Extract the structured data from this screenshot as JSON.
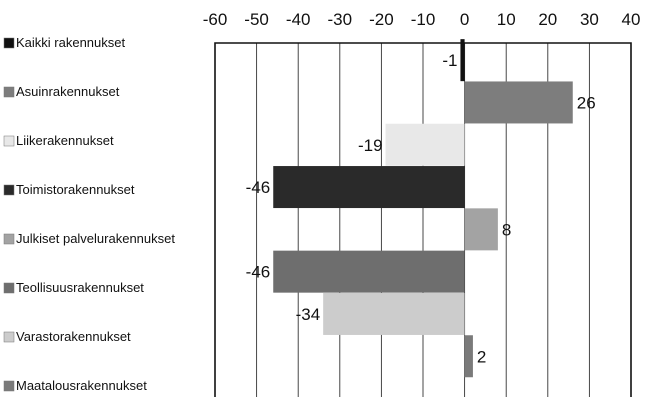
{
  "chart_data": {
    "type": "bar",
    "orientation": "horizontal",
    "categories": [
      "Kaikki rakennukset",
      "Asuinrakennukset",
      "Liikerakennukset",
      "Toimistorakennukset",
      "Julkiset palvelurakennukset",
      "Teollisuusrakennukset",
      "Varastorakennukset",
      "Maatalousrakennukset"
    ],
    "values": [
      -1,
      26,
      -19,
      -46,
      8,
      -46,
      -34,
      2
    ],
    "value_labels": [
      "-1",
      "26",
      "-19",
      "-46",
      "8",
      "-46",
      "-34",
      "2"
    ],
    "colors": [
      "#111111",
      "#7d7d7d",
      "#e8e8e8",
      "#2a2a2a",
      "#a3a3a3",
      "#6e6e6e",
      "#cccccc",
      "#7a7a7a"
    ],
    "xlim": [
      -60,
      40
    ],
    "xticks": [
      -60,
      -50,
      -40,
      -30,
      -20,
      -10,
      0,
      10,
      20,
      30,
      40
    ],
    "xtick_labels": [
      "-60",
      "-50",
      "-40",
      "-30",
      "-20",
      "-10",
      "0",
      "10",
      "20",
      "30",
      "40"
    ],
    "axis_position": "top",
    "grid": true,
    "legend": "left",
    "title": "",
    "xlabel": "",
    "ylabel": ""
  }
}
